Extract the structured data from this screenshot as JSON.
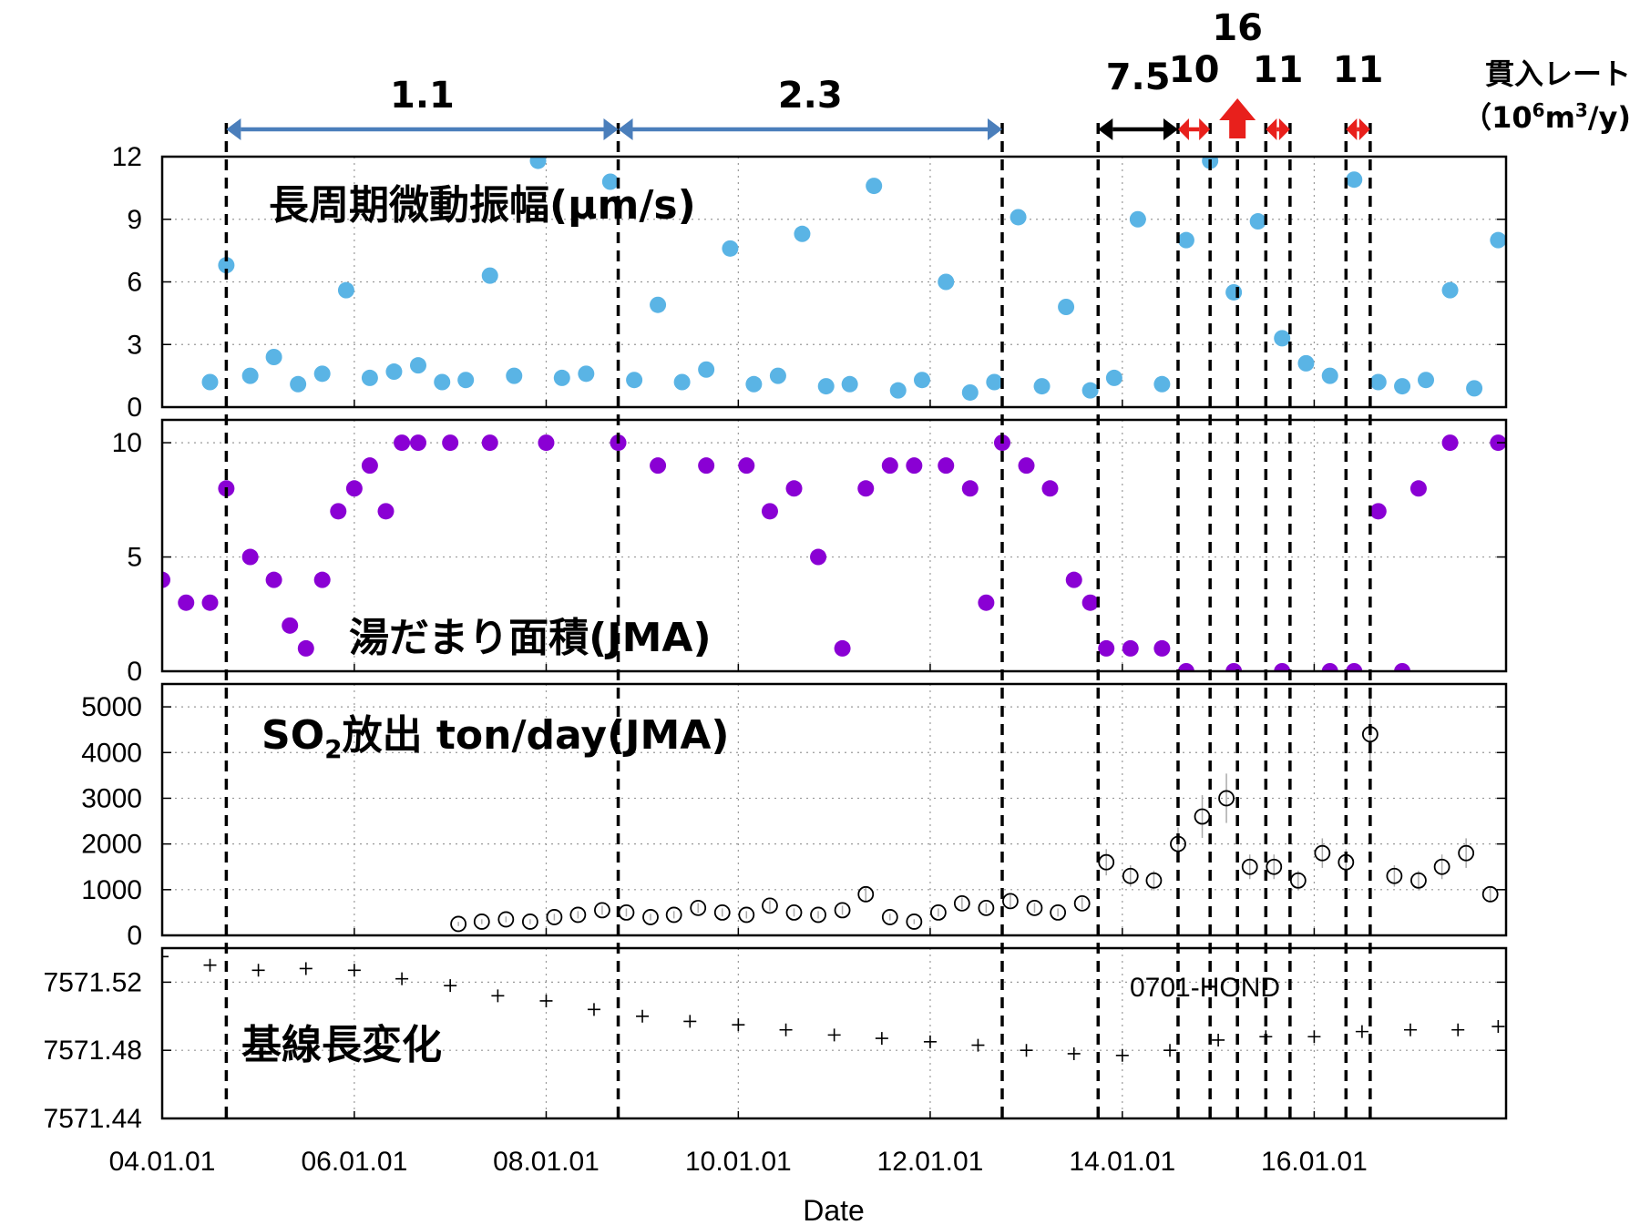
{
  "chart_data": {
    "type": "scatter",
    "xlabel": "Date",
    "x_ticks": [
      "04.01.01",
      "06.01.01",
      "08.01.01",
      "10.01.01",
      "12.01.01",
      "14.01.01",
      "16.01.01"
    ],
    "x_range": [
      "2004-01-01",
      "2017-12-31"
    ],
    "grid": true,
    "event_lines": [
      "2004-09-01",
      "2008-10-01",
      "2012-10-01",
      "2013-10-01",
      "2014-08-01",
      "2014-12-01",
      "2015-03-15",
      "2015-07-01",
      "2015-10-01",
      "2016-05-01",
      "2016-08-01"
    ],
    "intrusion_rate": {
      "header_line1": "貫入レート",
      "header_line2_prefix": "（10",
      "header_line2_exp": "6",
      "header_line2_mid": "m",
      "header_line2_exp2": "3",
      "header_line2_suffix": "/y)",
      "intervals": [
        {
          "label": "1.1",
          "start": "2004-09-01",
          "end": "2008-10-01",
          "color": "#4a7ebb",
          "arrow": "double"
        },
        {
          "label": "2.3",
          "start": "2008-10-01",
          "end": "2012-10-01",
          "color": "#4a7ebb",
          "arrow": "double"
        },
        {
          "label": "7.5",
          "start": "2013-10-01",
          "end": "2014-08-01",
          "color": "#000000",
          "arrow": "double"
        },
        {
          "label": "10",
          "start": "2014-08-01",
          "end": "2014-12-01",
          "color": "#e8201c",
          "arrow": "double"
        },
        {
          "label": "16",
          "start": "2015-03-15",
          "end": "2015-03-15",
          "color": "#e8201c",
          "arrow": "up",
          "label_color": "#e8201c"
        },
        {
          "label": "11",
          "start": "2015-07-01",
          "end": "2015-10-01",
          "color": "#e8201c",
          "arrow": "double"
        },
        {
          "label": "11",
          "start": "2016-05-01",
          "end": "2016-08-01",
          "color": "#e8201c",
          "arrow": "double"
        }
      ]
    },
    "panels": [
      {
        "title": "長周期微動振幅(μm/s)",
        "ylim": [
          0,
          12
        ],
        "yticks": [
          "0",
          "3",
          "6",
          "9",
          "12"
        ],
        "marker": "filled-circle",
        "color": "#5ab4e5",
        "series": {
          "x": [
            "2004-07-01",
            "2004-09-01",
            "2004-12-01",
            "2005-03-01",
            "2005-06-01",
            "2005-09-01",
            "2005-12-01",
            "2006-03-01",
            "2006-06-01",
            "2006-09-01",
            "2006-12-01",
            "2007-03-01",
            "2007-06-01",
            "2007-09-01",
            "2007-12-01",
            "2008-03-01",
            "2008-06-01",
            "2008-09-01",
            "2008-12-01",
            "2009-03-01",
            "2009-06-01",
            "2009-09-01",
            "2009-12-01",
            "2010-03-01",
            "2010-06-01",
            "2010-09-01",
            "2010-12-01",
            "2011-03-01",
            "2011-06-01",
            "2011-09-01",
            "2011-12-01",
            "2012-03-01",
            "2012-06-01",
            "2012-09-01",
            "2012-12-01",
            "2013-03-01",
            "2013-06-01",
            "2013-09-01",
            "2013-12-01",
            "2014-03-01",
            "2014-06-01",
            "2014-09-01",
            "2014-12-01",
            "2015-03-01",
            "2015-06-01",
            "2015-09-01",
            "2015-12-01",
            "2016-03-01",
            "2016-06-01",
            "2016-09-01",
            "2016-12-01",
            "2017-03-01",
            "2017-06-01",
            "2017-09-01",
            "2017-12-01"
          ],
          "y": [
            1.2,
            6.8,
            1.5,
            2.4,
            1.1,
            1.6,
            5.6,
            1.4,
            1.7,
            2.0,
            1.2,
            1.3,
            6.3,
            1.5,
            11.8,
            1.4,
            1.6,
            10.8,
            1.3,
            4.9,
            1.2,
            1.8,
            7.6,
            1.1,
            1.5,
            8.3,
            1.0,
            1.1,
            10.6,
            0.8,
            1.3,
            6.0,
            0.7,
            1.2,
            9.1,
            1.0,
            4.8,
            0.8,
            1.4,
            9.0,
            1.1,
            8.0,
            11.8,
            5.5,
            8.9,
            3.3,
            2.1,
            1.5,
            10.9,
            1.2,
            1.0,
            1.3,
            5.6,
            0.9,
            8.0
          ]
        }
      },
      {
        "title": "湯だまり面積(JMA)",
        "ylim": [
          0,
          11
        ],
        "yticks": [
          "0",
          "5",
          "10"
        ],
        "marker": "filled-circle",
        "color": "#8a00d4",
        "series": {
          "x": [
            "2004-01-01",
            "2004-04-01",
            "2004-07-01",
            "2004-09-01",
            "2004-12-01",
            "2005-03-01",
            "2005-05-01",
            "2005-07-01",
            "2005-09-01",
            "2005-11-01",
            "2006-01-01",
            "2006-03-01",
            "2006-05-01",
            "2006-07-01",
            "2006-09-01",
            "2007-01-01",
            "2007-06-01",
            "2008-01-01",
            "2008-10-01",
            "2009-03-01",
            "2009-09-01",
            "2010-02-01",
            "2010-05-01",
            "2010-08-01",
            "2010-11-01",
            "2011-02-01",
            "2011-05-01",
            "2011-08-01",
            "2011-11-01",
            "2012-03-01",
            "2012-06-01",
            "2012-08-01",
            "2012-10-01",
            "2013-01-01",
            "2013-04-01",
            "2013-07-01",
            "2013-09-01",
            "2013-11-01",
            "2014-02-01",
            "2014-06-01",
            "2014-09-01",
            "2015-03-01",
            "2015-09-01",
            "2016-03-01",
            "2016-06-01",
            "2016-09-01",
            "2016-12-01",
            "2017-02-01",
            "2017-06-01",
            "2017-12-01"
          ],
          "y": [
            4,
            3,
            3,
            8,
            5,
            4,
            2,
            1,
            4,
            7,
            8,
            9,
            7,
            10,
            10,
            10,
            10,
            10,
            10,
            9,
            9,
            9,
            7,
            8,
            5,
            1,
            8,
            9,
            9,
            9,
            8,
            3,
            10,
            9,
            8,
            4,
            3,
            1,
            1,
            1,
            0,
            0,
            0,
            0,
            0,
            7,
            0,
            8,
            10,
            10
          ]
        }
      },
      {
        "title_prefix": "SO",
        "title_sub": "2",
        "title_suffix": "放出 ton/day(JMA)",
        "ylim": [
          0,
          5500
        ],
        "yticks": [
          "0",
          "1000",
          "2000",
          "3000",
          "4000",
          "5000"
        ],
        "marker": "open-circle-with-errorbars",
        "color": "#000000",
        "series": {
          "x": [
            "2007-02-01",
            "2007-05-01",
            "2007-08-01",
            "2007-11-01",
            "2008-02-01",
            "2008-05-01",
            "2008-08-01",
            "2008-11-01",
            "2009-02-01",
            "2009-05-01",
            "2009-08-01",
            "2009-11-01",
            "2010-02-01",
            "2010-05-01",
            "2010-08-01",
            "2010-11-01",
            "2011-02-01",
            "2011-05-01",
            "2011-08-01",
            "2011-11-01",
            "2012-02-01",
            "2012-05-01",
            "2012-08-01",
            "2012-11-01",
            "2013-02-01",
            "2013-05-01",
            "2013-08-01",
            "2013-11-01",
            "2014-02-01",
            "2014-05-01",
            "2014-08-01",
            "2014-11-01",
            "2015-02-01",
            "2015-05-01",
            "2015-08-01",
            "2015-11-01",
            "2016-02-01",
            "2016-05-01",
            "2016-08-01",
            "2016-11-01",
            "2017-02-01",
            "2017-05-01",
            "2017-08-01",
            "2017-11-01"
          ],
          "y": [
            250,
            300,
            350,
            300,
            400,
            450,
            550,
            500,
            400,
            450,
            600,
            500,
            450,
            650,
            500,
            450,
            550,
            900,
            400,
            300,
            500,
            700,
            600,
            750,
            600,
            500,
            700,
            1600,
            1300,
            1200,
            2000,
            2600,
            3000,
            1500,
            1500,
            1200,
            1800,
            1600,
            4400,
            1300,
            1200,
            1500,
            1800,
            900
          ]
        }
      },
      {
        "title": "基線長変化",
        "site_label": "0701-HOND",
        "ylim": [
          7571.44,
          7571.54
        ],
        "yticks": [
          "7571.44",
          "7571.48",
          "7571.52"
        ],
        "marker": "plus",
        "color": "#000000",
        "series": {
          "x": [
            "2004-01-01",
            "2004-07-01",
            "2005-01-01",
            "2005-07-01",
            "2006-01-01",
            "2006-07-01",
            "2007-01-01",
            "2007-07-01",
            "2008-01-01",
            "2008-07-01",
            "2009-01-01",
            "2009-07-01",
            "2010-01-01",
            "2010-07-01",
            "2011-01-01",
            "2011-07-01",
            "2012-01-01",
            "2012-07-01",
            "2013-01-01",
            "2013-07-01",
            "2014-01-01",
            "2014-07-01",
            "2015-01-01",
            "2015-07-01",
            "2016-01-01",
            "2016-07-01",
            "2017-01-01",
            "2017-07-01",
            "2017-12-01"
          ],
          "y": [
            7571.535,
            7571.53,
            7571.527,
            7571.528,
            7571.527,
            7571.522,
            7571.518,
            7571.512,
            7571.509,
            7571.504,
            7571.5,
            7571.497,
            7571.495,
            7571.492,
            7571.489,
            7571.487,
            7571.485,
            7571.483,
            7571.48,
            7571.478,
            7571.477,
            7571.48,
            7571.486,
            7571.488,
            7571.488,
            7571.491,
            7571.492,
            7571.492,
            7571.494
          ]
        }
      }
    ]
  }
}
